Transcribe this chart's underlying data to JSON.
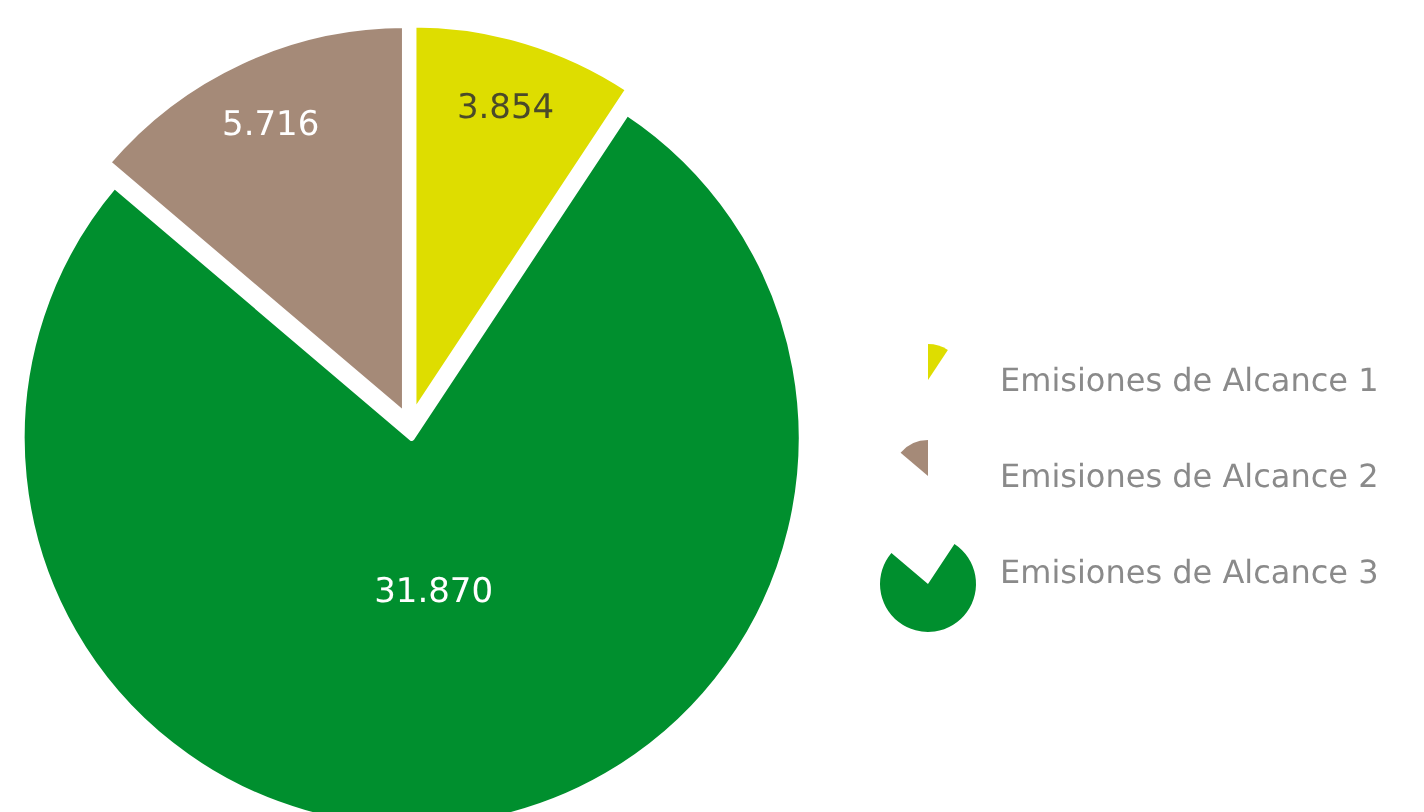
{
  "chart_data": {
    "type": "pie",
    "categories": [
      "Emisiones de Alcance 1",
      "Emisiones de Alcance 2",
      "Emisiones de Alcance 3"
    ],
    "values": [
      3854,
      5716,
      31870
    ],
    "colors": [
      "#dedd00",
      "#a58a78",
      "#008f2e"
    ],
    "value_labels": [
      "3.854",
      "5.716",
      "31.870"
    ],
    "legend": "right"
  }
}
